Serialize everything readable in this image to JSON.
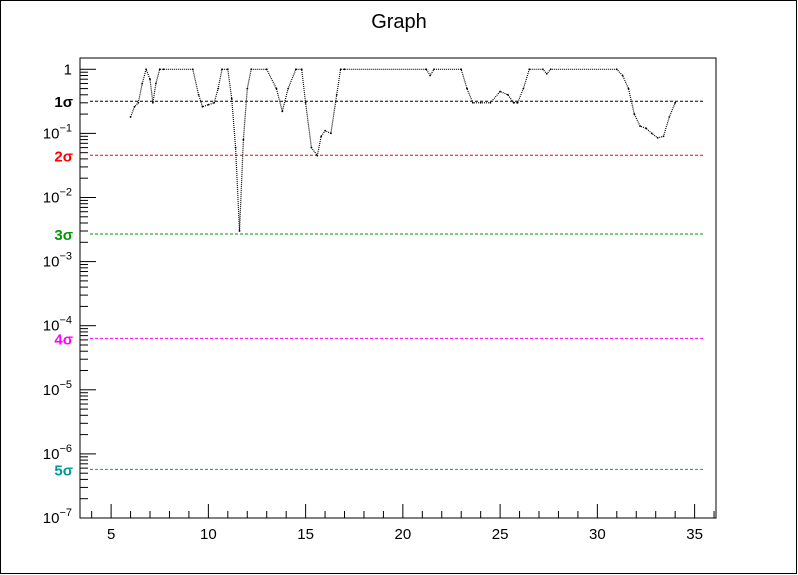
{
  "chart_data": {
    "type": "line",
    "title": "Graph",
    "xlabel": "",
    "ylabel": "",
    "x_range": [
      3.4,
      36.1
    ],
    "y_range": [
      1e-07,
      1.5
    ],
    "y_scale": "log",
    "x_ticks": [
      5,
      10,
      15,
      20,
      25,
      30,
      35
    ],
    "y_ticks": [
      {
        "value": 1,
        "base": "1",
        "exp": ""
      },
      {
        "value": 0.1,
        "base": "10",
        "exp": "−1"
      },
      {
        "value": 0.01,
        "base": "10",
        "exp": "−2"
      },
      {
        "value": 0.001,
        "base": "10",
        "exp": "−3"
      },
      {
        "value": 0.0001,
        "base": "10",
        "exp": "−4"
      },
      {
        "value": 1e-05,
        "base": "10",
        "exp": "−5"
      },
      {
        "value": 1e-06,
        "base": "10",
        "exp": "−6"
      },
      {
        "value": 1e-07,
        "base": "10",
        "exp": "−7"
      }
    ],
    "sigma_lines": [
      {
        "label": "1σ",
        "value": 0.3173,
        "color": "#000000"
      },
      {
        "label": "2σ",
        "value": 0.0455,
        "color": "#ff0000"
      },
      {
        "label": "3σ",
        "value": 0.0027,
        "color": "#009900"
      },
      {
        "label": "4σ",
        "value": 6.33e-05,
        "color": "#ff00ff"
      },
      {
        "label": "5σ",
        "value": 5.73e-07,
        "color": "#009999"
      }
    ],
    "series": [
      {
        "color": "#000000",
        "x": [
          6.0,
          6.2,
          6.4,
          6.6,
          6.8,
          7.0,
          7.15,
          7.3,
          7.5,
          7.7,
          9.2,
          9.5,
          9.7,
          10.0,
          10.3,
          10.5,
          10.7,
          11.0,
          11.2,
          11.4,
          11.6,
          11.8,
          12.0,
          12.2,
          13.0,
          13.5,
          13.8,
          14.1,
          14.5,
          14.8,
          15.0,
          15.3,
          15.6,
          15.8,
          16.0,
          16.3,
          16.6,
          16.8,
          17.0,
          21.2,
          21.4,
          21.6,
          23.0,
          23.3,
          23.6,
          24.0,
          24.5,
          25.0,
          25.4,
          25.7,
          25.9,
          26.2,
          26.5,
          27.2,
          27.4,
          27.6,
          31.0,
          31.3,
          31.6,
          31.9,
          32.2,
          32.5,
          32.8,
          33.1,
          33.4,
          33.7,
          34.0
        ],
        "y": [
          0.18,
          0.26,
          0.3,
          0.6,
          1.0,
          0.7,
          0.3,
          0.6,
          1.0,
          1.0,
          1.0,
          0.4,
          0.26,
          0.28,
          0.3,
          0.5,
          1.0,
          1.0,
          0.35,
          0.06,
          0.003,
          0.08,
          0.5,
          1.0,
          1.0,
          0.5,
          0.22,
          0.5,
          1.0,
          1.0,
          0.3,
          0.06,
          0.045,
          0.09,
          0.11,
          0.1,
          0.4,
          1.0,
          1.0,
          1.0,
          0.8,
          1.0,
          1.0,
          0.5,
          0.3,
          0.3,
          0.3,
          0.45,
          0.4,
          0.3,
          0.3,
          0.5,
          1.0,
          1.0,
          0.85,
          1.0,
          1.0,
          0.8,
          0.5,
          0.2,
          0.13,
          0.12,
          0.1,
          0.085,
          0.09,
          0.18,
          0.3
        ]
      }
    ],
    "grid": false,
    "legend": "none"
  }
}
